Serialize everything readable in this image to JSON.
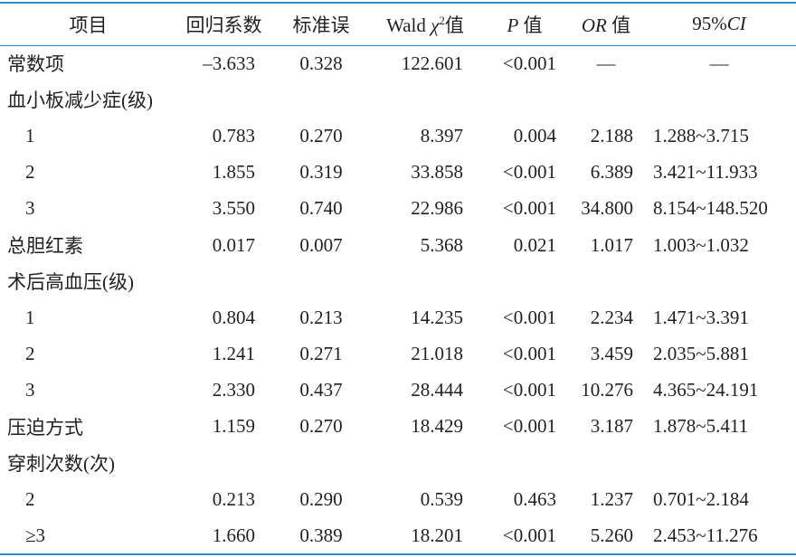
{
  "table": {
    "header": [
      [
        "项目"
      ],
      [
        "回归系数"
      ],
      [
        "标准误"
      ],
      [
        "Wald ",
        "χ",
        "2",
        "值"
      ],
      [
        "P",
        " 值"
      ],
      [
        "OR",
        " 值"
      ],
      [
        "95%",
        "CI"
      ]
    ],
    "rows": [
      {
        "cells": [
          "常数项",
          "–3.633",
          "0.328",
          "122.601",
          "<0.001",
          "—",
          "—"
        ]
      },
      {
        "label": "血小板减少症(级)",
        "rows": [
          [
            "1",
            "0.783",
            "0.270",
            "8.397",
            "0.004",
            "2.188",
            "1.288~3.715"
          ],
          [
            "2",
            "1.855",
            "0.319",
            "33.858",
            "<0.001",
            "6.389",
            "3.421~11.933"
          ],
          [
            "3",
            "3.550",
            "0.740",
            "22.986",
            "<0.001",
            "34.800",
            "8.154~148.520"
          ]
        ]
      },
      {
        "cells": [
          "总胆红素",
          "0.017",
          "0.007",
          "5.368",
          "0.021",
          "1.017",
          "1.003~1.032"
        ]
      },
      {
        "label": "术后高血压(级)",
        "rows": [
          [
            "1",
            "0.804",
            "0.213",
            "14.235",
            "<0.001",
            "2.234",
            "1.471~3.391"
          ],
          [
            "2",
            "1.241",
            "0.271",
            "21.018",
            "<0.001",
            "3.459",
            "2.035~5.881"
          ],
          [
            "3",
            "2.330",
            "0.437",
            "28.444",
            "<0.001",
            "10.276",
            "4.365~24.191"
          ]
        ]
      },
      {
        "cells": [
          "压迫方式",
          "1.159",
          "0.270",
          "18.429",
          "<0.001",
          "3.187",
          "1.878~5.411"
        ]
      },
      {
        "label": "穿刺次数(次)",
        "rows": [
          [
            "2",
            "0.213",
            "0.290",
            "0.539",
            "0.463",
            "1.237",
            "0.701~2.184"
          ],
          [
            "≥3",
            "1.660",
            "0.389",
            "18.201",
            "<0.001",
            "5.260",
            "2.453~11.276"
          ]
        ]
      }
    ]
  }
}
